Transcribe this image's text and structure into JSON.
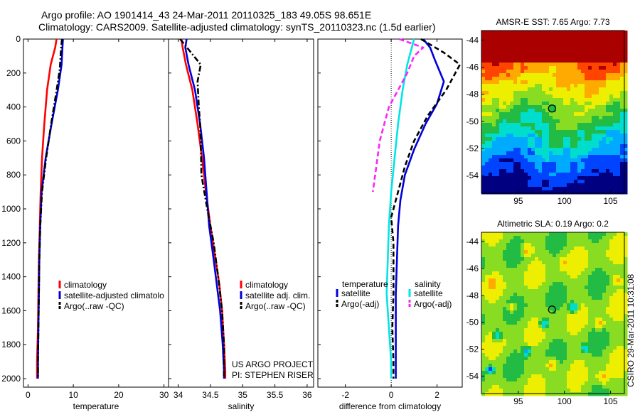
{
  "header": {
    "line1": "Argo profile: AO 1901414_43 24-Mar-2011 20110325_183 49.05S 98.651E",
    "line2": "Climatology: CARS2009. Satellite-adjusted climatology: synTS_20110323.nc (1.5d earlier)"
  },
  "side_label": "CSIRO 29-Mar-2011 10:31:08",
  "credits": {
    "line1": "US ARGO PROJECT",
    "line2": "PI: STEPHEN RISER"
  },
  "colors": {
    "climatology": "#ff0000",
    "satellite": "#0000dd",
    "argo": "#000000",
    "sat_salinity": "#00e5e5",
    "argo_salinity": "#ff22ff"
  },
  "chart_data": [
    {
      "type": "line",
      "xlabel": "temperature",
      "ylabel": "",
      "xlim": [
        -1,
        31
      ],
      "ylim": [
        2050,
        0
      ],
      "xticks": [
        0,
        10,
        20,
        30
      ],
      "yticks": [
        0,
        200,
        400,
        600,
        800,
        1000,
        1200,
        1400,
        1600,
        1800,
        2000
      ],
      "legend": [
        "climatology",
        "satellite-adjusted climatolo",
        "Argo(..raw -QC)"
      ],
      "series": [
        {
          "name": "climatology",
          "color": "#ff0000",
          "dash": "solid",
          "x": [
            6.3,
            6.0,
            5.0,
            4.2,
            3.6,
            3.1,
            2.8,
            2.6,
            2.4,
            2.3,
            2.2,
            2.0,
            2.0
          ],
          "y": [
            0,
            50,
            150,
            300,
            500,
            700,
            900,
            1100,
            1300,
            1500,
            1700,
            1900,
            2000
          ]
        },
        {
          "name": "satellite-adjusted climatolo",
          "color": "#0000dd",
          "dash": "solid",
          "x": [
            7.7,
            7.6,
            7.4,
            6.6,
            5.2,
            3.9,
            3.0,
            2.7,
            2.5,
            2.4,
            2.3,
            2.2,
            2.2
          ],
          "y": [
            0,
            50,
            150,
            300,
            500,
            700,
            900,
            1100,
            1300,
            1500,
            1700,
            1900,
            2000
          ]
        },
        {
          "name": "Argo(..raw -QC)",
          "color": "#000000",
          "dash": "dashdot",
          "x": [
            7.5,
            7.3,
            7.0,
            6.2,
            5.1,
            4.0,
            3.1,
            2.7,
            2.5,
            2.4,
            2.3,
            2.2,
            2.2
          ],
          "y": [
            0,
            50,
            180,
            320,
            500,
            700,
            900,
            1100,
            1300,
            1500,
            1700,
            1900,
            2000
          ]
        }
      ]
    },
    {
      "type": "line",
      "xlabel": "salinity",
      "ylabel": "",
      "xlim": [
        33.85,
        36.1
      ],
      "ylim": [
        2050,
        0
      ],
      "xticks": [
        34,
        34.5,
        35,
        35.5,
        36
      ],
      "xticklabels": [
        "34",
        "34.5",
        "35",
        "35.5",
        "36"
      ],
      "legend": [
        "climatology",
        "satellite adj. clim.",
        "Argo(..raw -QC)"
      ],
      "series": [
        {
          "name": "climatology",
          "color": "#ff0000",
          "dash": "solid",
          "x": [
            34.05,
            34.07,
            34.12,
            34.22,
            34.3,
            34.37,
            34.43,
            34.5,
            34.58,
            34.64,
            34.68,
            34.71,
            34.73,
            34.73
          ],
          "y": [
            0,
            50,
            150,
            300,
            500,
            700,
            900,
            1100,
            1300,
            1450,
            1600,
            1800,
            1950,
            2000
          ]
        },
        {
          "name": "satellite adj. clim.",
          "color": "#0000dd",
          "dash": "solid",
          "x": [
            34.13,
            34.11,
            34.16,
            34.26,
            34.34,
            34.4,
            34.44,
            34.48,
            34.55,
            34.6,
            34.65,
            34.69,
            34.71,
            34.71
          ],
          "y": [
            0,
            50,
            150,
            300,
            500,
            700,
            900,
            1100,
            1300,
            1450,
            1600,
            1800,
            1950,
            2000
          ]
        },
        {
          "name": "Argo(..raw -QC)",
          "color": "#000000",
          "dash": "dashdot",
          "x": [
            34.03,
            34.2,
            34.35,
            34.3,
            34.32,
            34.34,
            34.35,
            34.36,
            34.45,
            34.55,
            34.62,
            34.68,
            34.71,
            34.71
          ],
          "y": [
            0,
            80,
            150,
            250,
            400,
            500,
            600,
            800,
            1000,
            1200,
            1400,
            1600,
            1800,
            2000
          ]
        }
      ]
    },
    {
      "type": "line",
      "xlabel": "difference from climatology",
      "ylabel": "",
      "xlim": [
        -3.2,
        3.1
      ],
      "ylim": [
        2050,
        0
      ],
      "xticks": [
        -2,
        0,
        2
      ],
      "legend_temperature_title": "temperature",
      "legend_salinity_title": "salinity",
      "legend_temperature": [
        "satellite",
        "Argo(-adj)"
      ],
      "legend_salinity": [
        "satellite",
        "Argo(-adj)"
      ],
      "series": [
        {
          "name": "satellite",
          "group": "temperature",
          "color": "#0000dd",
          "dash": "solid",
          "x": [
            1.4,
            1.7,
            1.9,
            2.3,
            2.0,
            1.5,
            1.0,
            0.6,
            0.4,
            0.3,
            0.25,
            0.2,
            0.2,
            0.2
          ],
          "y": [
            0,
            50,
            120,
            250,
            380,
            500,
            650,
            800,
            950,
            1100,
            1300,
            1500,
            1800,
            2000
          ]
        },
        {
          "name": "Argo(-adj)",
          "group": "temperature",
          "color": "#000000",
          "dash": "dashed",
          "x": [
            1.3,
            2.3,
            3.0,
            2.4,
            1.6,
            1.0,
            0.6,
            0.0,
            0.1,
            0.1,
            0.1,
            0.05,
            0.1,
            0.1
          ],
          "y": [
            0,
            80,
            150,
            300,
            450,
            600,
            750,
            1050,
            1200,
            1300,
            1500,
            1700,
            1900,
            2000
          ]
        },
        {
          "name": "satellite",
          "group": "salinity",
          "color": "#00e5e5",
          "dash": "solid",
          "x": [
            1.0,
            0.9,
            0.7,
            0.5,
            0.3,
            0.15,
            0.0,
            -0.1,
            -0.15,
            -0.2,
            -0.1,
            0.0,
            0.0
          ],
          "y": [
            0,
            50,
            150,
            300,
            500,
            700,
            900,
            1100,
            1300,
            1500,
            1700,
            1900,
            2000
          ]
        },
        {
          "name": "Argo(-adj)",
          "group": "salinity",
          "color": "#ff22ff",
          "dash": "dashed",
          "x": [
            0.35,
            1.4,
            1.0,
            0.7,
            0.3,
            -0.1,
            -0.3,
            -0.5,
            -0.6,
            -0.7,
            -0.8
          ],
          "y": [
            0,
            50,
            100,
            200,
            300,
            400,
            500,
            600,
            700,
            800,
            900
          ]
        }
      ]
    },
    {
      "type": "heatmap",
      "title": "AMSR-E SST: 7.65 Argo: 7.73",
      "xlim": [
        91,
        106.5
      ],
      "ylim": [
        -55.3,
        -43.3
      ],
      "xticks": [
        95,
        100,
        105
      ],
      "yticks": [
        -44,
        -46,
        -48,
        -50,
        -52,
        -54
      ],
      "marker": {
        "x": 98.65,
        "y": -49.05
      },
      "colors": [
        "#000080",
        "#0044ff",
        "#00aaff",
        "#00ddcc",
        "#22bb44",
        "#88dd22",
        "#eeee00",
        "#ffaa00",
        "#ff4400",
        "#aa0000"
      ]
    },
    {
      "type": "heatmap",
      "title": "Altimetric SLA: 0.19 Argo: 0.2",
      "xlim": [
        91,
        106.5
      ],
      "ylim": [
        -55.3,
        -43.3
      ],
      "xticks": [
        95,
        100,
        105
      ],
      "yticks": [
        -44,
        -46,
        -48,
        -50,
        -52,
        -54
      ],
      "marker": {
        "x": 98.65,
        "y": -49.05
      },
      "colors": [
        "#0044ff",
        "#00aaff",
        "#00ddcc",
        "#22bb44",
        "#88dd22",
        "#eeee00",
        "#ffaa00",
        "#ff4400"
      ]
    }
  ]
}
